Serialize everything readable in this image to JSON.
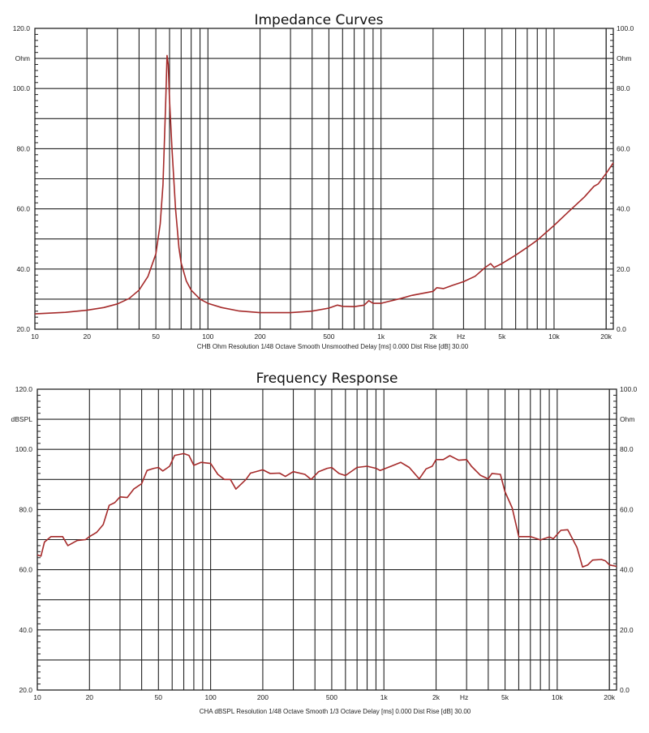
{
  "chart_data": [
    {
      "type": "line",
      "title": "Impedance Curves",
      "xlabel": "Hz",
      "ylabel": "Ohm",
      "y2label": "Ohm",
      "footnote": "CHB Ohm Resolution 1/48 Octave Smooth Unsmoothed Delay [ms] 0.000 Dist Rise [dB] 30.00",
      "xscale": "log",
      "xlim": [
        10,
        22000
      ],
      "ylim": [
        20,
        120
      ],
      "y2lim": [
        0,
        100
      ],
      "grid": true,
      "xticks": [
        "10",
        "20",
        "50",
        "100",
        "200",
        "500",
        "1k",
        "2k",
        "Hz",
        "5k",
        "10k",
        "20k"
      ],
      "xtick_values": [
        10,
        20,
        50,
        100,
        200,
        500,
        1000,
        2000,
        2900,
        5000,
        10000,
        20000
      ],
      "yticks": [
        "20.0",
        "40.0",
        "60.0",
        "80.0",
        "100.0",
        "120.0"
      ],
      "y2ticks": [
        "0.0",
        "20.0",
        "40.0",
        "60.0",
        "80.0",
        "100.0"
      ],
      "line_color": "#a52a2a",
      "series": [
        {
          "name": "Impedance",
          "x": [
            10,
            15,
            20,
            25,
            30,
            35,
            40,
            45,
            50,
            53,
            55,
            57,
            58,
            59,
            60,
            62,
            65,
            68,
            70,
            75,
            80,
            90,
            100,
            120,
            150,
            200,
            300,
            400,
            500,
            560,
            600,
            700,
            800,
            850,
            900,
            1000,
            1100,
            1300,
            1500,
            1700,
            2000,
            2100,
            2300,
            2600,
            3000,
            3500,
            4000,
            4300,
            4500,
            5000,
            6000,
            7000,
            8000,
            10000,
            12000,
            15000,
            17000,
            18000,
            20000,
            22000
          ],
          "y": [
            25.1,
            25.6,
            26.3,
            27.2,
            28.4,
            30.2,
            33,
            37.5,
            45,
            55,
            68,
            95,
            111,
            108,
            96,
            80,
            60,
            47,
            42,
            36,
            33,
            30,
            28.6,
            27.2,
            26.1,
            25.5,
            25.5,
            26,
            27,
            28,
            27.6,
            27.5,
            28,
            29.5,
            28.6,
            28.6,
            29.2,
            30.2,
            31.2,
            31.8,
            32.6,
            33.8,
            33.5,
            34.6,
            35.8,
            37.6,
            40.5,
            41.8,
            40.5,
            41.8,
            44.6,
            47.2,
            49.6,
            54.5,
            58.8,
            64,
            67.5,
            68.3,
            71.8,
            75.3
          ]
        }
      ]
    },
    {
      "type": "line",
      "title": "Frequency Response",
      "xlabel": "Hz",
      "ylabel": "dBSPL",
      "y2label": "Ohm",
      "footnote": "CHA dBSPL Resolution 1/48 Octave Smooth 1/3 Octave Delay [ms] 0.000 Dist Rise [dB] 30.00",
      "xscale": "log",
      "xlim": [
        10,
        22000
      ],
      "ylim": [
        20,
        120
      ],
      "y2lim": [
        0,
        100
      ],
      "grid": true,
      "xticks": [
        "10",
        "20",
        "50",
        "100",
        "200",
        "500",
        "1k",
        "2k",
        "Hz",
        "5k",
        "10k",
        "20k"
      ],
      "xtick_values": [
        10,
        20,
        50,
        100,
        200,
        500,
        1000,
        2000,
        2900,
        5000,
        10000,
        20000
      ],
      "yticks": [
        "20.0",
        "40.0",
        "60.0",
        "80.0",
        "100.0",
        "120.0"
      ],
      "y2ticks": [
        "0.0",
        "20.0",
        "40.0",
        "60.0",
        "80.0",
        "100.0"
      ],
      "line_color": "#a52a2a",
      "series": [
        {
          "name": "SPL",
          "x": [
            10,
            10.5,
            11,
            12,
            14,
            15,
            17,
            19,
            20,
            22,
            24,
            26,
            28,
            30,
            33,
            36,
            40,
            43,
            47,
            50,
            53,
            58,
            62,
            70,
            75,
            80,
            88,
            100,
            110,
            120,
            130,
            140,
            160,
            170,
            200,
            220,
            250,
            270,
            300,
            350,
            380,
            420,
            470,
            500,
            550,
            600,
            700,
            800,
            900,
            950,
            1100,
            1250,
            1400,
            1600,
            1750,
            1900,
            2000,
            2200,
            2400,
            2700,
            3000,
            3200,
            3600,
            4000,
            4200,
            4700,
            5000,
            5500,
            6000,
            7000,
            8000,
            9000,
            9500,
            10500,
            11500,
            13000,
            14000,
            15000,
            16000,
            18000,
            19000,
            20000,
            22000
          ],
          "y": [
            64.9,
            64.5,
            69.2,
            71,
            71,
            68,
            69.7,
            70,
            71,
            72.4,
            75,
            81.4,
            82.3,
            84.2,
            84,
            86.8,
            88.6,
            93,
            93.7,
            94,
            92.8,
            94.4,
            98,
            98.6,
            98,
            94.7,
            95.7,
            95.3,
            91.7,
            90,
            90,
            86.8,
            90,
            92.1,
            93.2,
            92,
            92.1,
            91,
            92.6,
            91.7,
            90,
            92.6,
            93.7,
            94,
            92,
            91.3,
            94,
            94.4,
            93.7,
            93,
            94.4,
            95.7,
            94,
            90.2,
            93.5,
            94.4,
            96.6,
            96.6,
            97.9,
            96.4,
            96.6,
            94.4,
            91.4,
            90.2,
            92,
            91.7,
            85.9,
            80.5,
            71,
            71,
            69.9,
            70.9,
            70.3,
            73.1,
            73.3,
            67.4,
            60.9,
            61.6,
            63.2,
            63.4,
            62.9,
            61.6,
            61.1
          ]
        }
      ]
    }
  ]
}
